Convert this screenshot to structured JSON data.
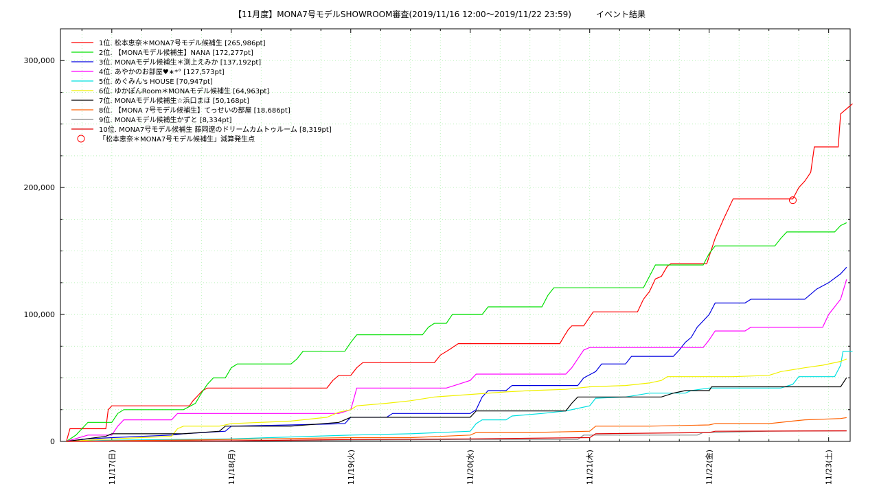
{
  "chart_data": {
    "type": "line",
    "title": "【11月度】MONA7号モデルSHOWROOM審査(2019/11/16 12:00～2019/11/22 23:59)　　　イベント結果",
    "xlabel": "",
    "ylabel": "",
    "x_ticks": [
      "11/17(日)",
      "11/18(月)",
      "11/19(火)",
      "11/20(水)",
      "11/21(木)",
      "11/22(金)",
      "11/23(土)"
    ],
    "y_ticks": [
      "0",
      "100,000",
      "200,000",
      "300,000"
    ],
    "xlim": [
      -0.43,
      6.18
    ],
    "ylim": [
      0,
      325000
    ],
    "grid": true,
    "legend_position": "top-left",
    "series": [
      {
        "name": "1位. 松本恵奈＊MONA7号モデル候補生 [265,986pt]",
        "color": "#ff0000",
        "points": [
          [
            -0.38,
            0
          ],
          [
            -0.35,
            10000
          ],
          [
            -0.05,
            10000
          ],
          [
            -0.03,
            25000
          ],
          [
            0,
            28000
          ],
          [
            0.5,
            28000
          ],
          [
            0.65,
            28000
          ],
          [
            0.68,
            32000
          ],
          [
            0.72,
            36000
          ],
          [
            0.76,
            40000
          ],
          [
            0.8,
            42000
          ],
          [
            1.8,
            42000
          ],
          [
            1.85,
            48000
          ],
          [
            1.9,
            52000
          ],
          [
            2,
            52000
          ],
          [
            2.05,
            58000
          ],
          [
            2.1,
            62000
          ],
          [
            2.7,
            62000
          ],
          [
            2.75,
            68000
          ],
          [
            2.82,
            72000
          ],
          [
            2.9,
            77000
          ],
          [
            3.75,
            77000
          ],
          [
            3.78,
            82000
          ],
          [
            3.82,
            88000
          ],
          [
            3.85,
            91000
          ],
          [
            3.95,
            91000
          ],
          [
            4,
            98000
          ],
          [
            4.03,
            102000
          ],
          [
            4.4,
            102000
          ],
          [
            4.45,
            112000
          ],
          [
            4.5,
            118000
          ],
          [
            4.55,
            128000
          ],
          [
            4.6,
            130000
          ],
          [
            4.65,
            138000
          ],
          [
            4.68,
            140000
          ],
          [
            4.98,
            140000
          ],
          [
            5.05,
            160000
          ],
          [
            5.12,
            175000
          ],
          [
            5.2,
            191000
          ],
          [
            5.7,
            191000
          ],
          [
            5.75,
            200000
          ],
          [
            5.8,
            205000
          ],
          [
            5.85,
            212000
          ],
          [
            5.88,
            232000
          ],
          [
            6.08,
            232000
          ],
          [
            6.1,
            258000
          ],
          [
            6.15,
            262000
          ],
          [
            6.2,
            265986
          ]
        ]
      },
      {
        "name": "2位. 【MONAモデル候補生】NANA [172,277pt]",
        "color": "#00e000",
        "points": [
          [
            -0.38,
            0
          ],
          [
            -0.3,
            5000
          ],
          [
            -0.2,
            15000
          ],
          [
            0,
            15000
          ],
          [
            0.05,
            22000
          ],
          [
            0.1,
            25000
          ],
          [
            0.6,
            25000
          ],
          [
            0.7,
            30000
          ],
          [
            0.75,
            38000
          ],
          [
            0.8,
            45000
          ],
          [
            0.85,
            50000
          ],
          [
            0.95,
            50000
          ],
          [
            1,
            58000
          ],
          [
            1.05,
            61000
          ],
          [
            1.5,
            61000
          ],
          [
            1.55,
            65000
          ],
          [
            1.6,
            71000
          ],
          [
            1.95,
            71000
          ],
          [
            2,
            78000
          ],
          [
            2.05,
            84000
          ],
          [
            2.6,
            84000
          ],
          [
            2.65,
            90000
          ],
          [
            2.7,
            93000
          ],
          [
            2.8,
            93000
          ],
          [
            2.85,
            100000
          ],
          [
            3.1,
            100000
          ],
          [
            3.15,
            106000
          ],
          [
            3.6,
            106000
          ],
          [
            3.65,
            115000
          ],
          [
            3.7,
            121000
          ],
          [
            4.45,
            121000
          ],
          [
            4.5,
            130000
          ],
          [
            4.55,
            139000
          ],
          [
            4.95,
            139000
          ],
          [
            5,
            148000
          ],
          [
            5.05,
            154000
          ],
          [
            5.55,
            154000
          ],
          [
            5.6,
            160000
          ],
          [
            5.65,
            165000
          ],
          [
            6.05,
            165000
          ],
          [
            6.1,
            170000
          ],
          [
            6.15,
            172277
          ]
        ]
      },
      {
        "name": "3位. MONAモデル候補生＊渕上えみか [137,192pt]",
        "color": "#0000e0",
        "points": [
          [
            -0.38,
            0
          ],
          [
            -0.2,
            2000
          ],
          [
            0,
            3000
          ],
          [
            0.5,
            5000
          ],
          [
            0.6,
            6000
          ],
          [
            0.95,
            8000
          ],
          [
            1,
            12000
          ],
          [
            1.5,
            13000
          ],
          [
            1.95,
            14000
          ],
          [
            2,
            19000
          ],
          [
            2.3,
            19000
          ],
          [
            2.35,
            22000
          ],
          [
            3,
            22000
          ],
          [
            3.05,
            25000
          ],
          [
            3.1,
            35000
          ],
          [
            3.15,
            40000
          ],
          [
            3.3,
            40000
          ],
          [
            3.35,
            44000
          ],
          [
            3.9,
            44000
          ],
          [
            3.95,
            50000
          ],
          [
            4.05,
            55000
          ],
          [
            4.1,
            61000
          ],
          [
            4.3,
            61000
          ],
          [
            4.35,
            67000
          ],
          [
            4.7,
            67000
          ],
          [
            4.75,
            72000
          ],
          [
            4.8,
            78000
          ],
          [
            4.85,
            82000
          ],
          [
            4.9,
            90000
          ],
          [
            5,
            100000
          ],
          [
            5.05,
            109000
          ],
          [
            5.3,
            109000
          ],
          [
            5.35,
            112000
          ],
          [
            5.8,
            112000
          ],
          [
            5.9,
            120000
          ],
          [
            6,
            125000
          ],
          [
            6.1,
            132000
          ],
          [
            6.15,
            137192
          ]
        ]
      },
      {
        "name": "4位. あやかのお部屋♥∗*° [127,573pt]",
        "color": "#ff00ff",
        "points": [
          [
            -0.38,
            0
          ],
          [
            -0.2,
            5000
          ],
          [
            0,
            5000
          ],
          [
            0.05,
            12000
          ],
          [
            0.1,
            17000
          ],
          [
            0.5,
            17000
          ],
          [
            0.55,
            22000
          ],
          [
            1.9,
            22000
          ],
          [
            2,
            25000
          ],
          [
            2.03,
            35000
          ],
          [
            2.05,
            42000
          ],
          [
            2.8,
            42000
          ],
          [
            2.9,
            45000
          ],
          [
            3,
            48000
          ],
          [
            3.05,
            53000
          ],
          [
            3.8,
            53000
          ],
          [
            3.85,
            58000
          ],
          [
            3.9,
            65000
          ],
          [
            3.95,
            72000
          ],
          [
            4,
            74000
          ],
          [
            4.95,
            74000
          ],
          [
            5,
            80000
          ],
          [
            5.05,
            87000
          ],
          [
            5.3,
            87000
          ],
          [
            5.35,
            90000
          ],
          [
            5.95,
            90000
          ],
          [
            6,
            100000
          ],
          [
            6.05,
            106000
          ],
          [
            6.1,
            112000
          ],
          [
            6.15,
            127573
          ]
        ]
      },
      {
        "name": "5位. めぐみん's HOUSE [70,947pt]",
        "color": "#00e0e0",
        "points": [
          [
            -0.38,
            0
          ],
          [
            0,
            1000
          ],
          [
            1,
            2000
          ],
          [
            2,
            5000
          ],
          [
            2.5,
            6000
          ],
          [
            3,
            8000
          ],
          [
            3.05,
            14000
          ],
          [
            3.1,
            17000
          ],
          [
            3.3,
            17000
          ],
          [
            3.35,
            20000
          ],
          [
            3.6,
            22000
          ],
          [
            3.8,
            24000
          ],
          [
            4,
            28000
          ],
          [
            4.05,
            34000
          ],
          [
            4.3,
            35000
          ],
          [
            4.5,
            38000
          ],
          [
            4.8,
            38000
          ],
          [
            4.85,
            40000
          ],
          [
            5,
            42000
          ],
          [
            5.6,
            42000
          ],
          [
            5.7,
            45000
          ],
          [
            5.75,
            51000
          ],
          [
            6.05,
            51000
          ],
          [
            6.1,
            60000
          ],
          [
            6.12,
            71000
          ],
          [
            6.2,
            70947
          ]
        ]
      },
      {
        "name": "6位. ゆかぽんRoom＊MONAモデル候補生 [64,963pt]",
        "color": "#f0f000",
        "points": [
          [
            -0.38,
            0
          ],
          [
            0,
            2000
          ],
          [
            0.5,
            4000
          ],
          [
            0.55,
            10000
          ],
          [
            0.6,
            12000
          ],
          [
            0.9,
            12000
          ],
          [
            1,
            14000
          ],
          [
            1.5,
            16000
          ],
          [
            1.8,
            19000
          ],
          [
            1.9,
            23000
          ],
          [
            2,
            25000
          ],
          [
            2.05,
            28000
          ],
          [
            2.3,
            30000
          ],
          [
            2.5,
            32000
          ],
          [
            2.7,
            35000
          ],
          [
            3,
            37000
          ],
          [
            3.3,
            39000
          ],
          [
            3.5,
            40000
          ],
          [
            3.8,
            41000
          ],
          [
            4,
            43000
          ],
          [
            4.3,
            44000
          ],
          [
            4.5,
            46000
          ],
          [
            4.6,
            48000
          ],
          [
            4.65,
            51000
          ],
          [
            5.2,
            51000
          ],
          [
            5.5,
            52000
          ],
          [
            5.6,
            55000
          ],
          [
            5.8,
            58000
          ],
          [
            5.95,
            60000
          ],
          [
            6.1,
            63000
          ],
          [
            6.15,
            64963
          ]
        ]
      },
      {
        "name": "7位. MONAモデル候補生☆浜口まほ [50,168pt]",
        "color": "#000000",
        "points": [
          [
            -0.38,
            0
          ],
          [
            -0.3,
            1000
          ],
          [
            -0.05,
            4000
          ],
          [
            0,
            6000
          ],
          [
            0.6,
            6000
          ],
          [
            0.9,
            8000
          ],
          [
            0.95,
            12000
          ],
          [
            1.5,
            12000
          ],
          [
            1.9,
            15000
          ],
          [
            2,
            19000
          ],
          [
            2.3,
            19000
          ],
          [
            3,
            19000
          ],
          [
            3.05,
            24000
          ],
          [
            3.8,
            24000
          ],
          [
            3.85,
            30000
          ],
          [
            3.9,
            35000
          ],
          [
            4.6,
            35000
          ],
          [
            4.7,
            38000
          ],
          [
            4.75,
            39000
          ],
          [
            4.8,
            40000
          ],
          [
            5,
            40000
          ],
          [
            5.02,
            43000
          ],
          [
            6.1,
            43000
          ],
          [
            6.15,
            50168
          ]
        ]
      },
      {
        "name": "8位. 【MONA 7号モデル候補生】てっせいの部屋 [18,686pt]",
        "color": "#ff6000",
        "points": [
          [
            -0.38,
            0
          ],
          [
            0,
            500
          ],
          [
            1,
            1500
          ],
          [
            2,
            3000
          ],
          [
            2.5,
            3000
          ],
          [
            3,
            5000
          ],
          [
            3.05,
            7000
          ],
          [
            3.5,
            7000
          ],
          [
            4,
            8000
          ],
          [
            4.05,
            12000
          ],
          [
            4.5,
            12000
          ],
          [
            5,
            13000
          ],
          [
            5.05,
            14000
          ],
          [
            5.5,
            14000
          ],
          [
            5.7,
            16000
          ],
          [
            5.8,
            17000
          ],
          [
            6.1,
            18000
          ],
          [
            6.15,
            18686
          ]
        ]
      },
      {
        "name": "9位. MONAモデル候補生かずと [8,334pt]",
        "color": "#888888",
        "points": [
          [
            -0.38,
            0
          ],
          [
            1,
            500
          ],
          [
            2,
            1000
          ],
          [
            3,
            1500
          ],
          [
            3.5,
            1500
          ],
          [
            3.9,
            1500
          ],
          [
            3.95,
            5000
          ],
          [
            4.5,
            5000
          ],
          [
            4.9,
            5000
          ],
          [
            4.95,
            7000
          ],
          [
            5.5,
            8000
          ],
          [
            6.15,
            8334
          ]
        ]
      },
      {
        "name": "10位. MONA7号モデル候補生 藤岡遼のドリームカムトゥルーム [8,319pt]",
        "color": "#e00000",
        "points": [
          [
            -0.38,
            0
          ],
          [
            1,
            500
          ],
          [
            2,
            1500
          ],
          [
            3,
            2000
          ],
          [
            3.5,
            2500
          ],
          [
            4,
            3000
          ],
          [
            4.05,
            6000
          ],
          [
            4.5,
            6500
          ],
          [
            5,
            7000
          ],
          [
            5.05,
            8000
          ],
          [
            6.15,
            8319
          ]
        ]
      }
    ],
    "markers": [
      {
        "name": "「松本恵奈＊MONA7号モデル候補生」減算発生点",
        "color": "#ff0000",
        "shape": "open-circle",
        "points": [
          [
            5.7,
            190000
          ]
        ]
      }
    ]
  }
}
